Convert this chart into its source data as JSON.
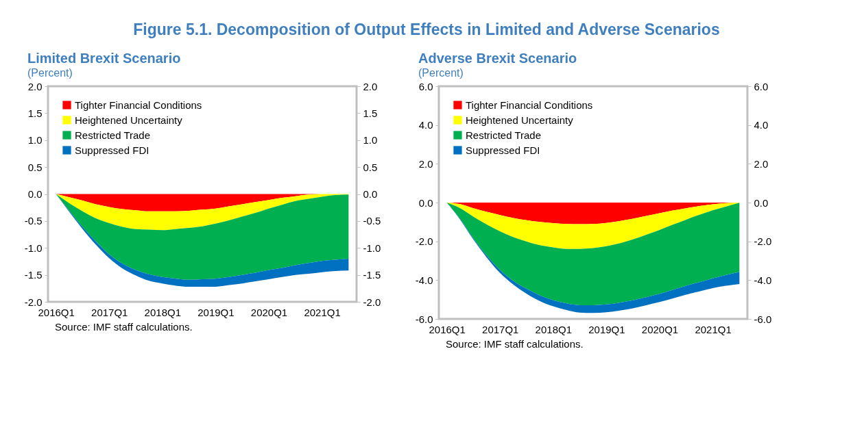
{
  "chart_data": [
    {
      "type": "area",
      "title": "Limited Brexit Scenario",
      "ylabel": "(Percent)",
      "stacked": true,
      "legend": "top left",
      "annotations": [
        "Figure 5.1. Decomposition of Output Effects in Limited and Adverse Scenarios",
        "Source: IMF staff calculations."
      ],
      "categories": [
        "2016Q1",
        null,
        null,
        null,
        "2017Q1",
        null,
        null,
        null,
        "2018Q1",
        null,
        null,
        null,
        "2019Q1",
        null,
        null,
        null,
        "2020Q1",
        null,
        null,
        null,
        "2021Q1",
        null,
        null
      ],
      "series": [
        {
          "name": "Tighter Financial Conditions",
          "color": "#ff0000",
          "values": [
            0,
            -0.06,
            -0.12,
            -0.19,
            -0.24,
            -0.28,
            -0.3,
            -0.32,
            -0.32,
            -0.32,
            -0.31,
            -0.29,
            -0.27,
            -0.23,
            -0.19,
            -0.15,
            -0.11,
            -0.07,
            -0.04,
            -0.01,
            0,
            0,
            0
          ]
        },
        {
          "name": "Heightened Uncertainty",
          "color": "#ffff00",
          "values": [
            0,
            -0.11,
            -0.2,
            -0.26,
            -0.3,
            -0.33,
            -0.35,
            -0.34,
            -0.35,
            -0.33,
            -0.32,
            -0.31,
            -0.28,
            -0.26,
            -0.23,
            -0.2,
            -0.16,
            -0.13,
            -0.09,
            -0.08,
            -0.05,
            -0.02,
            -0.01
          ]
        },
        {
          "name": "Restricted Trade",
          "color": "#00b050",
          "values": [
            0,
            -0.14,
            -0.29,
            -0.43,
            -0.58,
            -0.68,
            -0.76,
            -0.83,
            -0.87,
            -0.92,
            -0.96,
            -0.98,
            -1.02,
            -1.05,
            -1.08,
            -1.11,
            -1.14,
            -1.17,
            -1.19,
            -1.19,
            -1.19,
            -1.2,
            -1.19
          ]
        },
        {
          "name": "Suppressed FDI",
          "color": "#0070c0",
          "values": [
            0,
            -0.02,
            -0.04,
            -0.06,
            -0.07,
            -0.09,
            -0.1,
            -0.12,
            -0.12,
            -0.13,
            -0.13,
            -0.14,
            -0.15,
            -0.15,
            -0.16,
            -0.16,
            -0.17,
            -0.17,
            -0.18,
            -0.2,
            -0.21,
            -0.21,
            -0.22
          ]
        }
      ],
      "ylim": [
        -2,
        2
      ],
      "yticks": [
        {
          "value": -2,
          "label": "-2.0"
        },
        {
          "value": -1.5,
          "label": "-1.5"
        },
        {
          "value": -1,
          "label": "-1.0"
        },
        {
          "value": -0.5,
          "label": "-0.5"
        },
        {
          "value": 0,
          "label": "0.0"
        },
        {
          "value": 0.5,
          "label": "0.5"
        },
        {
          "value": 1,
          "label": "1.0"
        },
        {
          "value": 1.5,
          "label": "1.5"
        },
        {
          "value": 2,
          "label": "2.0"
        }
      ],
      "y2lim": [
        -2,
        2
      ],
      "y2ticks": [
        {
          "value": -2,
          "label": "-2.0"
        },
        {
          "value": -1.5,
          "label": "-1.5"
        },
        {
          "value": -1,
          "label": "-1.0"
        },
        {
          "value": -0.5,
          "label": "-0.5"
        },
        {
          "value": 0,
          "label": "0.0"
        },
        {
          "value": 0.5,
          "label": "0.5"
        },
        {
          "value": 1,
          "label": "1.0"
        },
        {
          "value": 1.5,
          "label": "1.5"
        },
        {
          "value": 2,
          "label": "2.0"
        }
      ]
    },
    {
      "type": "area",
      "title": "Adverse Brexit Scenario",
      "ylabel": "(Percent)",
      "stacked": true,
      "legend": "top left",
      "annotations": [
        "Source: IMF staff calculations."
      ],
      "categories": [
        "2016Q1",
        null,
        null,
        null,
        "2017Q1",
        null,
        null,
        null,
        "2018Q1",
        null,
        null,
        null,
        "2019Q1",
        null,
        null,
        null,
        "2020Q1",
        null,
        null,
        null,
        "2021Q1",
        null,
        null
      ],
      "series": [
        {
          "name": "Tighter Financial Conditions",
          "color": "#ff0000",
          "values": [
            0,
            -0.08,
            -0.29,
            -0.48,
            -0.64,
            -0.79,
            -0.91,
            -1.0,
            -1.06,
            -1.1,
            -1.11,
            -1.1,
            -1.05,
            -0.95,
            -0.83,
            -0.69,
            -0.55,
            -0.41,
            -0.29,
            -0.18,
            -0.09,
            -0.03,
            0
          ]
        },
        {
          "name": "Heightened Uncertainty",
          "color": "#ffff00",
          "values": [
            0,
            -0.21,
            -0.44,
            -0.65,
            -0.84,
            -0.99,
            -1.1,
            -1.2,
            -1.25,
            -1.29,
            -1.28,
            -1.25,
            -1.2,
            -1.15,
            -1.07,
            -0.97,
            -0.86,
            -0.73,
            -0.59,
            -0.45,
            -0.31,
            -0.17,
            -0.01
          ]
        },
        {
          "name": "Restricted Trade",
          "color": "#00b050",
          "values": [
            0,
            -0.56,
            -1.12,
            -1.6,
            -2.0,
            -2.26,
            -2.44,
            -2.59,
            -2.73,
            -2.81,
            -2.9,
            -2.94,
            -3.0,
            -3.06,
            -3.14,
            -3.22,
            -3.29,
            -3.36,
            -3.41,
            -3.47,
            -3.51,
            -3.53,
            -3.57
          ]
        },
        {
          "name": "Suppressed FDI",
          "color": "#0070c0",
          "values": [
            0,
            -0.03,
            -0.06,
            -0.1,
            -0.15,
            -0.19,
            -0.25,
            -0.29,
            -0.31,
            -0.34,
            -0.38,
            -0.4,
            -0.41,
            -0.41,
            -0.41,
            -0.41,
            -0.43,
            -0.44,
            -0.46,
            -0.48,
            -0.5,
            -0.56,
            -0.62
          ]
        }
      ],
      "ylim": [
        -6,
        6
      ],
      "yticks": [
        {
          "value": -6,
          "label": "-6.0"
        },
        {
          "value": -4,
          "label": "-4.0"
        },
        {
          "value": -2,
          "label": "-2.0"
        },
        {
          "value": 0,
          "label": "0.0"
        },
        {
          "value": 2,
          "label": "2.0"
        },
        {
          "value": 4,
          "label": "4.0"
        },
        {
          "value": 6,
          "label": "6.0"
        }
      ],
      "y2lim": [
        -6,
        6
      ],
      "y2ticks": [
        {
          "value": -6,
          "label": "-6.0"
        },
        {
          "value": -4,
          "label": "-4.0"
        },
        {
          "value": -2,
          "label": "-2.0"
        },
        {
          "value": 0,
          "label": "0.0"
        },
        {
          "value": 2,
          "label": "2.0"
        },
        {
          "value": 4,
          "label": "4.0"
        },
        {
          "value": 6,
          "label": "6.0"
        }
      ]
    }
  ]
}
